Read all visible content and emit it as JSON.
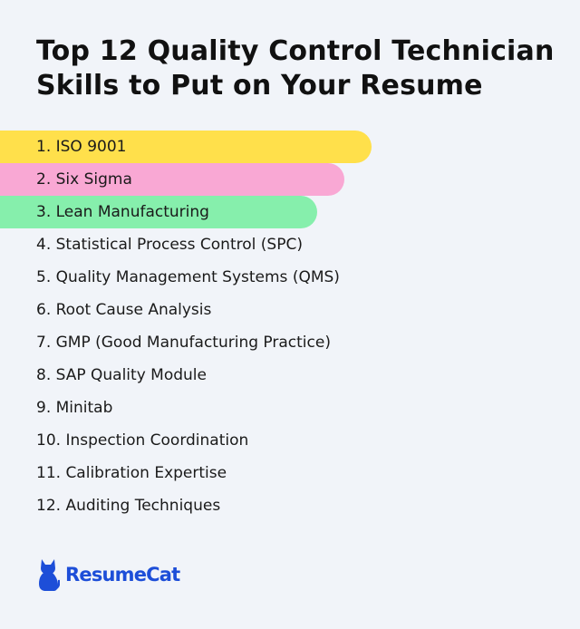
{
  "title": "Top 12 Quality Control Technician Skills to Put on Your Resume",
  "skills": [
    {
      "label": "1. ISO 9001",
      "highlight": "#ffe04b"
    },
    {
      "label": "2. Six Sigma",
      "highlight": "#f9a8d4"
    },
    {
      "label": "3. Lean Manufacturing",
      "highlight": "#86efac"
    },
    {
      "label": "4. Statistical Process Control (SPC)"
    },
    {
      "label": "5. Quality Management Systems (QMS)"
    },
    {
      "label": "6. Root Cause Analysis"
    },
    {
      "label": "7. GMP (Good Manufacturing Practice)"
    },
    {
      "label": "8. SAP Quality Module"
    },
    {
      "label": "9. Minitab"
    },
    {
      "label": "10. Inspection Coordination"
    },
    {
      "label": "11. Calibration Expertise"
    },
    {
      "label": "12. Auditing Techniques"
    }
  ],
  "brand": {
    "name": "ResumeCat",
    "icon": "cat-icon",
    "color": "#1d4ed8"
  },
  "colors": {
    "background": "#f1f4f9",
    "text": "#111111"
  }
}
